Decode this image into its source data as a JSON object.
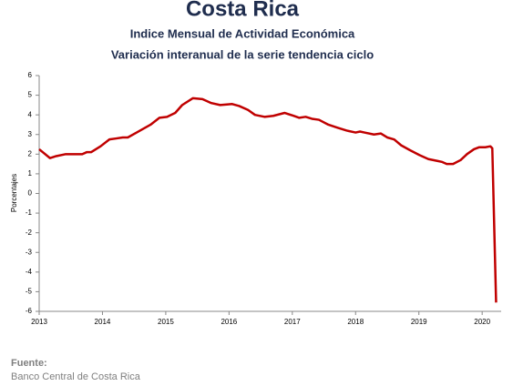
{
  "chart_data": {
    "type": "line",
    "title": "Costa Rica",
    "subtitle": "Indice Mensual de  Actividad Económica",
    "subtitle2": "Variación interanual de la serie tendencia ciclo",
    "y_label": "Porcentajes",
    "source_label": "Fuente:",
    "source": "Banco Central de Costa Rica",
    "color": "#c00000",
    "xlim": [
      2013,
      2020.3
    ],
    "xticks": [
      2013,
      2014,
      2015,
      2016,
      2017,
      2018,
      2019,
      2020
    ],
    "ylim": [
      -6,
      6
    ],
    "yticks": [
      -6,
      -5,
      -4,
      -3,
      -2,
      -1,
      0,
      1,
      2,
      3,
      4,
      5,
      6
    ],
    "x": [
      2013.0,
      2013.17,
      2013.27,
      2013.42,
      2013.68,
      2013.75,
      2013.82,
      2013.97,
      2014.11,
      2014.22,
      2014.32,
      2014.4,
      2014.54,
      2014.76,
      2014.9,
      2015.02,
      2015.15,
      2015.26,
      2015.43,
      2015.58,
      2015.72,
      2015.86,
      2016.05,
      2016.16,
      2016.3,
      2016.41,
      2016.56,
      2016.7,
      2016.88,
      2017.02,
      2017.11,
      2017.21,
      2017.31,
      2017.42,
      2017.57,
      2017.71,
      2017.86,
      2018.0,
      2018.07,
      2018.14,
      2018.29,
      2018.4,
      2018.5,
      2018.61,
      2018.72,
      2018.86,
      2019.01,
      2019.15,
      2019.3,
      2019.37,
      2019.44,
      2019.54,
      2019.66,
      2019.76,
      2019.87,
      2019.95,
      2020.05,
      2020.13,
      2020.16,
      2020.22
    ],
    "values": [
      2.25,
      1.8,
      1.9,
      2.0,
      2.0,
      2.1,
      2.1,
      2.4,
      2.75,
      2.8,
      2.85,
      2.85,
      3.1,
      3.5,
      3.85,
      3.9,
      4.1,
      4.5,
      4.85,
      4.8,
      4.6,
      4.5,
      4.55,
      4.45,
      4.25,
      4.0,
      3.9,
      3.95,
      4.1,
      3.95,
      3.85,
      3.9,
      3.8,
      3.75,
      3.5,
      3.35,
      3.2,
      3.1,
      3.15,
      3.1,
      3.0,
      3.05,
      2.85,
      2.75,
      2.45,
      2.2,
      1.95,
      1.75,
      1.65,
      1.6,
      1.5,
      1.5,
      1.7,
      2.0,
      2.25,
      2.35,
      2.35,
      2.4,
      2.3,
      -5.55
    ]
  }
}
